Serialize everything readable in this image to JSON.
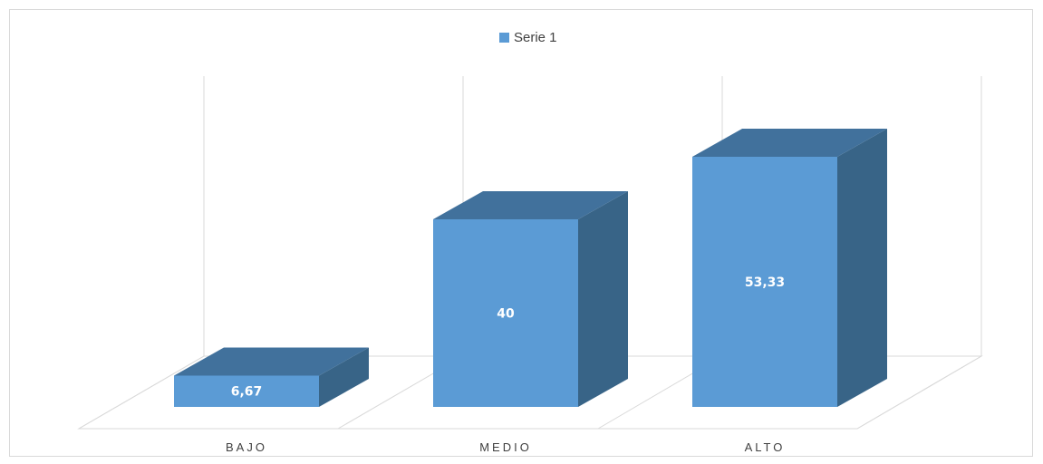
{
  "chart_data": {
    "type": "bar",
    "variant": "3d-column",
    "categories": [
      "BAJO",
      "MEDIO",
      "ALTO"
    ],
    "series": [
      {
        "name": "Serie 1",
        "values": [
          6.67,
          40,
          53.33
        ],
        "value_labels": [
          "6,67",
          "40",
          "53,33"
        ],
        "color": "#5b9bd5"
      }
    ],
    "ylim": [
      0,
      60
    ],
    "legend_position": "top",
    "grid": "vertical-walls",
    "colors": {
      "front": "#5b9bd5",
      "top": "#41719c",
      "side": "#386487",
      "grid": "#d9d9d9"
    }
  }
}
